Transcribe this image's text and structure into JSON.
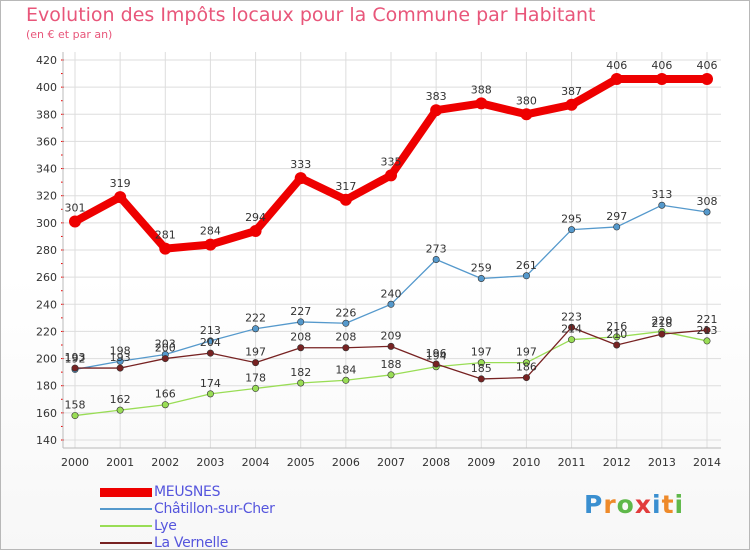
{
  "header": {
    "title": "Evolution des Impôts locaux pour la Commune par Habitant",
    "subtitle": "(en € et par an)"
  },
  "logo": {
    "text": "Proxiti",
    "letters": [
      "P",
      "r",
      "o",
      "x",
      "i",
      "t",
      "i"
    ],
    "colors": [
      "#3a8fd0",
      "#ee8a2a",
      "#5fb84a",
      "#e23c3c",
      "#3a8fd0",
      "#ee8a2a",
      "#5fb84a"
    ]
  },
  "chart_data": {
    "type": "line",
    "title": "Evolution des Impôts locaux pour la Commune par Habitant",
    "subtitle": "(en € et par an)",
    "xlabel": "",
    "ylabel": "",
    "x": [
      "2000",
      "2001",
      "2002",
      "2003",
      "2004",
      "2005",
      "2006",
      "2007",
      "2008",
      "2009",
      "2010",
      "2011",
      "2012",
      "2013",
      "2014"
    ],
    "ylim": [
      140,
      420
    ],
    "yticks": [
      "140",
      "160",
      "180",
      "200",
      "220",
      "240",
      "260",
      "280",
      "300",
      "320",
      "340",
      "360",
      "380",
      "400",
      "420"
    ],
    "grid": true,
    "legend_position": "bottom-left",
    "series": [
      {
        "name": "MEUSNES",
        "color": "#ee0000",
        "values": [
          301,
          319,
          281,
          284,
          294,
          333,
          317,
          335,
          383,
          388,
          380,
          387,
          406,
          406,
          406
        ],
        "labels": [
          "301",
          "319",
          "281",
          "284",
          "294",
          "333",
          "317",
          "335",
          "383",
          "388",
          "380",
          "387",
          "406",
          "406",
          "406"
        ]
      },
      {
        "name": "Châtillon-sur-Cher",
        "color": "#5599cc",
        "values": [
          192,
          198,
          203,
          213,
          222,
          227,
          226,
          240,
          273,
          259,
          261,
          295,
          297,
          313,
          308
        ],
        "labels": [
          "192",
          "198",
          "203",
          "213",
          "222",
          "227",
          "226",
          "240",
          "273",
          "259",
          "261",
          "295",
          "297",
          "313",
          "308"
        ]
      },
      {
        "name": "Lye",
        "color": "#99dd55",
        "values": [
          158,
          162,
          166,
          174,
          178,
          182,
          184,
          188,
          194,
          197,
          197,
          214,
          216,
          220,
          213
        ],
        "labels": [
          "158",
          "162",
          "166",
          "174",
          "178",
          "182",
          "184",
          "188",
          "194",
          "197",
          "197",
          "214",
          "216",
          "220",
          "213"
        ]
      },
      {
        "name": "La Vernelle",
        "color": "#772222",
        "values": [
          193,
          193,
          200,
          204,
          197,
          208,
          208,
          209,
          196,
          185,
          186,
          223,
          210,
          218,
          221
        ],
        "labels": [
          "193",
          "193",
          "200",
          "204",
          "197",
          "208",
          "208",
          "209",
          "196",
          "185",
          "186",
          "223",
          "210",
          "218",
          "221"
        ]
      }
    ]
  }
}
